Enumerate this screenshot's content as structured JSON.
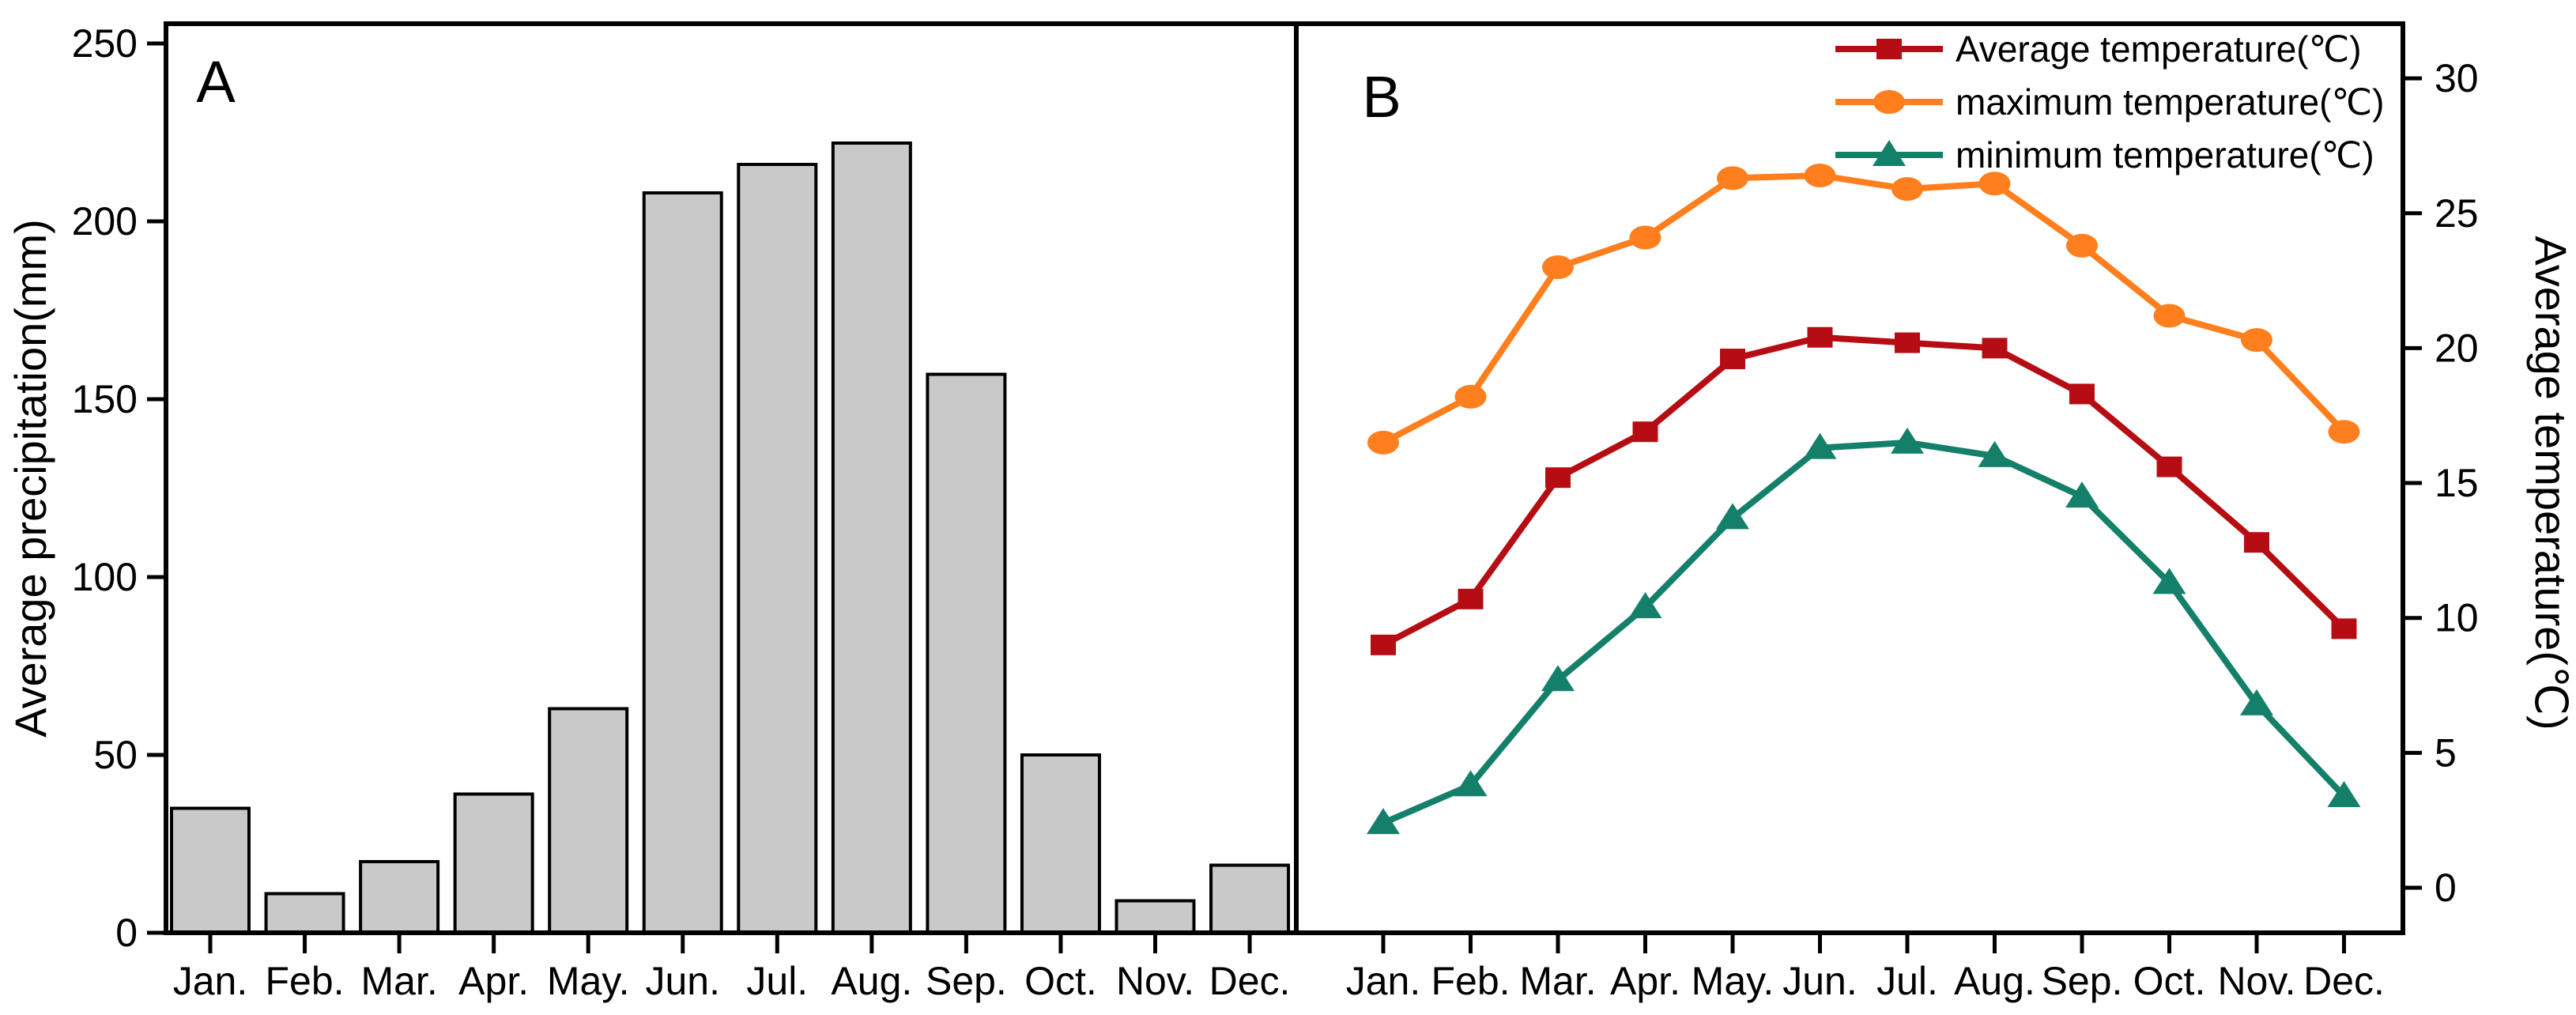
{
  "panels": {
    "a": {
      "label": "A"
    },
    "b": {
      "label": "B"
    }
  },
  "months": [
    "Jan.",
    "Feb.",
    "Mar.",
    "Apr.",
    "May.",
    "Jun.",
    "Jul.",
    "Aug.",
    "Sep.",
    "Oct.",
    "Nov.",
    "Dec."
  ],
  "colors": {
    "bar_fill": "#c9c9c9",
    "bar_stroke": "#000000",
    "axis": "#000000",
    "average_temp": "#b50d13",
    "maximum_temp": "#ff7f1e",
    "minimum_temp": "#15806a"
  },
  "chart_data": [
    {
      "type": "bar",
      "panel": "A",
      "title": "A",
      "categories": [
        "Jan.",
        "Feb.",
        "Mar.",
        "Apr.",
        "May.",
        "Jun.",
        "Jul.",
        "Aug.",
        "Sep.",
        "Oct.",
        "Nov.",
        "Dec."
      ],
      "values": [
        35,
        11,
        20,
        39,
        63,
        208,
        216,
        222,
        157,
        50,
        9,
        19
      ],
      "xlabel": "",
      "ylabel": "Average precipitation(mm)",
      "yticks": [
        0,
        50,
        100,
        150,
        200,
        250
      ],
      "ylim": [
        0,
        256
      ],
      "grid": false,
      "bar_color": "#c9c9c9"
    },
    {
      "type": "line",
      "panel": "B",
      "title": "B",
      "categories": [
        "Jan.",
        "Feb.",
        "Mar.",
        "Apr.",
        "May.",
        "Jun.",
        "Jul.",
        "Aug.",
        "Sep.",
        "Oct.",
        "Nov.",
        "Dec."
      ],
      "series": [
        {
          "name": "Average temperature(℃)",
          "marker": "square",
          "color": "#b50d13",
          "values": [
            9.0,
            10.7,
            15.2,
            16.9,
            19.6,
            20.4,
            20.2,
            20.0,
            18.3,
            15.6,
            12.8,
            9.6
          ]
        },
        {
          "name": "maximum temperature(℃)",
          "marker": "circle",
          "color": "#ff7f1e",
          "values": [
            16.5,
            18.2,
            23.0,
            24.1,
            26.3,
            26.4,
            25.9,
            26.1,
            23.8,
            21.2,
            20.3,
            16.9
          ]
        },
        {
          "name": "minimum temperature(℃)",
          "marker": "triangle",
          "color": "#15806a",
          "values": [
            2.4,
            3.8,
            7.7,
            10.4,
            13.7,
            16.3,
            16.5,
            16.0,
            14.5,
            11.3,
            6.8,
            3.4
          ]
        }
      ],
      "xlabel": "",
      "ylabel": "Average temperature(℃)",
      "yticks": [
        0,
        5,
        10,
        15,
        20,
        25,
        30
      ],
      "ylim": [
        -1.7,
        32.1
      ],
      "grid": false,
      "legend_position": "top-right"
    }
  ]
}
